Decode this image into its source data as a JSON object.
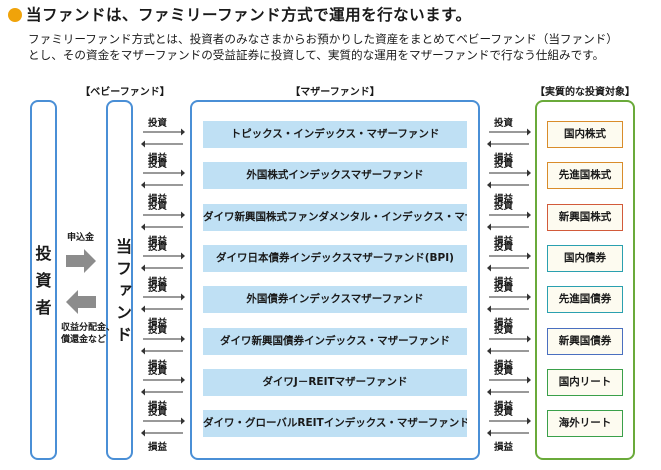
{
  "heading": "当ファンドは、ファミリーファンド方式で運用を行ないます。",
  "description": [
    "ファミリーファンド方式とは、投資者のみなさまからお預かりした資産をまとめてベビーファンド（当ファンド）",
    "とし、その資金をマザーファンドの受益証券に投資して、実質的な運用をマザーファンドで行なう仕組みです。"
  ],
  "columns": {
    "baby": "【ベビーファンド】",
    "mother": "【マザーファンド】",
    "target": "【実質的な投資対象】"
  },
  "investor": {
    "label": "投資者"
  },
  "baby_fund": {
    "label": "当ファンド"
  },
  "subscription": {
    "label": "申込金"
  },
  "distribution": {
    "label_line1": "収益分配金、",
    "label_line2": "償還金など"
  },
  "flows": {
    "invest": "投資",
    "profit": "損益"
  },
  "mother_funds": [
    "トピックス・インデックス・マザーファンド",
    "外国株式インデックスマザーファンド",
    "ダイワ新興国株式ファンダメンタル・インデックス・マザーファンド",
    "ダイワ日本債券インデックスマザーファンド(BPI)",
    "外国債券インデックスマザーファンド",
    "ダイワ新興国債券インデックス・マザーファンド",
    "ダイワJ－REITマザーファンド",
    "ダイワ・グローバルREITインデックス・マザーファンド"
  ],
  "assets": [
    {
      "label": "国内株式",
      "color": "orange"
    },
    {
      "label": "先進国株式",
      "color": "orange"
    },
    {
      "label": "新興国株式",
      "color": "red"
    },
    {
      "label": "国内債券",
      "color": "teal"
    },
    {
      "label": "先進国債券",
      "color": "teal"
    },
    {
      "label": "新興国債券",
      "color": "blue"
    },
    {
      "label": "国内リート",
      "color": "green"
    },
    {
      "label": "海外リート",
      "color": "green"
    }
  ],
  "colors": {
    "accent": "#f0a30a",
    "frame_border": "#4a8fd6",
    "mother_fill": "#bfe0f4",
    "arrow_gray": "#8c8c8c"
  }
}
